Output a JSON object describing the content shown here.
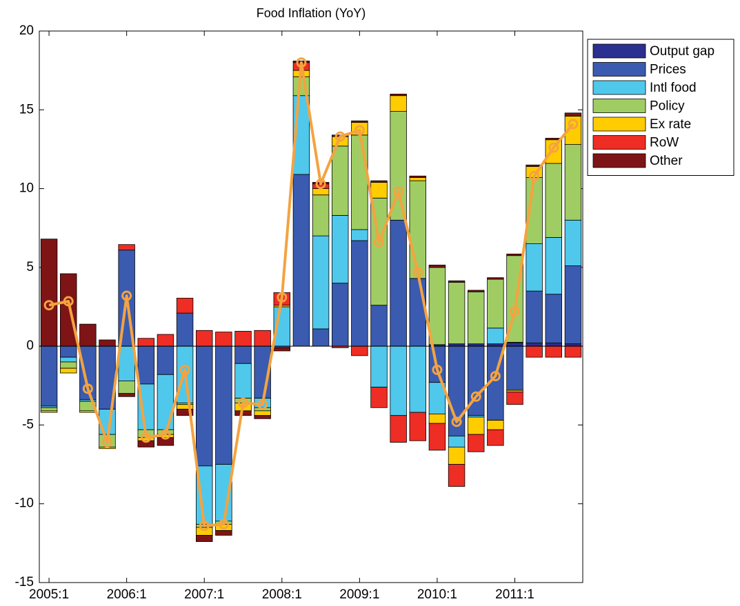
{
  "chart_data": {
    "type": "bar",
    "stacked": true,
    "title": "Food Inflation (YoY)",
    "categories": [
      "2005:1",
      null,
      null,
      null,
      "2006:1",
      null,
      null,
      null,
      "2007:1",
      null,
      null,
      null,
      "2008:1",
      null,
      null,
      null,
      "2009:1",
      null,
      null,
      null,
      "2010:1",
      null,
      null,
      null,
      "2011:1",
      null,
      null,
      null
    ],
    "series": [
      {
        "name": "Output gap",
        "color": "#2b2f8f",
        "values": [
          0,
          0,
          0,
          0,
          0,
          0,
          0,
          0,
          0,
          0,
          0,
          0,
          0,
          0,
          0,
          0,
          0,
          0,
          0,
          0,
          0.1,
          0.15,
          0.15,
          0.15,
          0.2,
          0.2,
          0.2,
          0.15
        ]
      },
      {
        "name": "Prices",
        "color": "#3a5bb0",
        "values": [
          -3.8,
          -0.7,
          -3.4,
          -4.0,
          6.1,
          -2.4,
          -1.8,
          2.1,
          -7.6,
          -7.5,
          -1.1,
          -3.3,
          -0.1,
          10.9,
          1.1,
          4.0,
          6.7,
          2.6,
          8.0,
          4.3,
          -2.3,
          -5.7,
          -4.4,
          -4.7,
          -2.8,
          3.3,
          3.1,
          4.95
        ]
      },
      {
        "name": "Intl food",
        "color": "#4fc8ec",
        "values": [
          -0.1,
          -0.3,
          -0.1,
          -1.6,
          -2.2,
          -2.9,
          -3.5,
          -3.6,
          -3.7,
          -3.6,
          -2.2,
          -0.6,
          2.5,
          5.0,
          5.9,
          4.3,
          0.7,
          -2.6,
          -4.4,
          -4.2,
          -2.0,
          -0.7,
          -0.1,
          1.0,
          0.05,
          3.0,
          3.6,
          2.9
        ]
      },
      {
        "name": "Policy",
        "color": "#9fcd63",
        "values": [
          -0.2,
          -0.4,
          -0.6,
          -0.8,
          -0.8,
          -0.5,
          -0.3,
          -0.1,
          -0.2,
          -0.2,
          -0.3,
          -0.2,
          0,
          1.2,
          2.6,
          4.4,
          6.0,
          6.8,
          6.9,
          6.2,
          4.9,
          3.9,
          3.3,
          3.1,
          5.5,
          4.2,
          4.7,
          4.8
        ]
      },
      {
        "name": "Ex rate",
        "color": "#ffcc00",
        "values": [
          -0.1,
          -0.3,
          -0.1,
          -0.1,
          0,
          -0.2,
          -0.2,
          -0.3,
          -0.5,
          -0.4,
          -0.5,
          -0.3,
          0.1,
          0.4,
          0.4,
          0.6,
          0.8,
          1.0,
          1.0,
          0.2,
          -0.6,
          -1.1,
          -1.1,
          -0.6,
          -0.1,
          0.7,
          1.5,
          1.8
        ]
      },
      {
        "name": "RoW",
        "color": "#ee2d24",
        "values": [
          0,
          0,
          0,
          0,
          0.35,
          0.5,
          0.75,
          0.95,
          1.0,
          0.9,
          0.95,
          1.0,
          0.8,
          0.5,
          0.3,
          -0.1,
          -0.6,
          -1.3,
          -1.7,
          -1.8,
          -1.7,
          -1.4,
          -1.1,
          -1.0,
          -0.8,
          -0.7,
          -0.7,
          -0.7
        ]
      },
      {
        "name": "Other",
        "color": "#7f1416",
        "values": [
          6.8,
          4.6,
          1.4,
          0.4,
          -0.2,
          -0.4,
          -0.5,
          -0.4,
          -0.4,
          -0.3,
          -0.3,
          -0.2,
          -0.2,
          0.1,
          0.1,
          0.1,
          0.1,
          0.1,
          0.1,
          0.1,
          0.15,
          0.1,
          0.1,
          0.1,
          0.1,
          0.1,
          0.1,
          0.2
        ]
      }
    ],
    "line": {
      "color": "#f4a340",
      "values": [
        2.6,
        2.85,
        -2.7,
        -6.1,
        3.2,
        -5.8,
        -5.6,
        -1.5,
        -11.4,
        -11.3,
        -3.6,
        -3.7,
        3.1,
        18.0,
        10.3,
        13.3,
        13.7,
        6.6,
        9.8,
        4.7,
        -1.5,
        -4.8,
        -3.2,
        -1.9,
        2.2,
        10.8,
        12.6,
        14.1
      ]
    },
    "ylim": [
      -15,
      20
    ],
    "yticks": [
      -15,
      -10,
      -5,
      0,
      5,
      10,
      15,
      20
    ],
    "legend": "outside-right"
  }
}
